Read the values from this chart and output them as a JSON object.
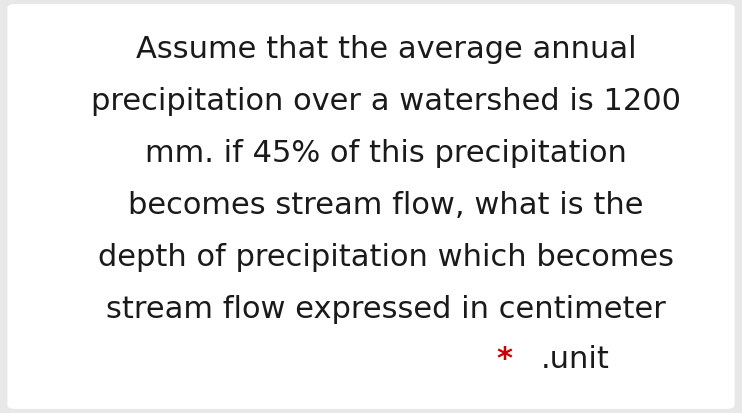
{
  "background_color": "#e8e8e8",
  "box_color": "#ffffff",
  "text_lines": [
    "Assume that the average annual",
    "precipitation over a watershed is 1200",
    "mm. if 45% of this precipitation",
    "becomes stream flow, what is the",
    "depth of precipitation which becomes",
    "stream flow expressed in centimeter"
  ],
  "last_line_star": "*",
  "last_line_text": ".unit",
  "star_color": "#cc0000",
  "text_color": "#1a1a1a",
  "font_size": 22,
  "last_line_font_size": 22
}
